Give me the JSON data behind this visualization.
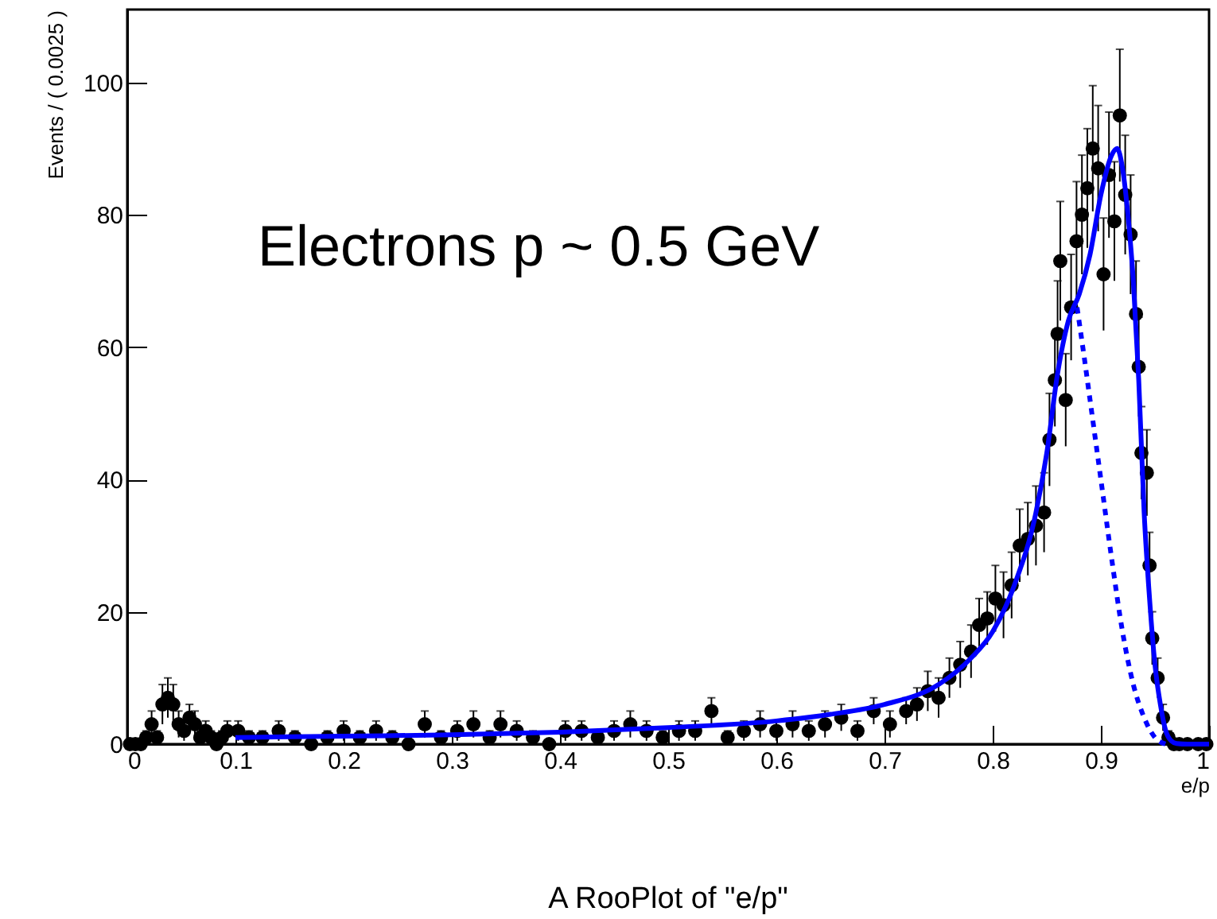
{
  "chart_data": {
    "type": "scatter",
    "title": "A RooPlot of \"e/p\"",
    "xlabel": "e/p",
    "ylabel": "Events / ( 0.0025 )",
    "annotations": [
      "Electrons p  ~ 0.5 GeV"
    ],
    "xlim": [
      0,
      1
    ],
    "xticks": [
      0,
      0.1,
      0.2,
      0.3,
      0.4,
      0.5,
      0.6,
      0.7,
      0.8,
      0.9,
      1
    ],
    "ylim": [
      0,
      111
    ],
    "yticks": [
      0,
      20,
      40,
      60,
      80,
      100
    ],
    "series": [
      {
        "marker": "circle",
        "color": "#000000",
        "x": [
          0.0025,
          0.0075,
          0.0125,
          0.0175,
          0.0225,
          0.0275,
          0.0325,
          0.0375,
          0.0425,
          0.0475,
          0.0525,
          0.0575,
          0.0625,
          0.0675,
          0.0725,
          0.0775,
          0.0825,
          0.0875,
          0.0925,
          0.1025,
          0.1125,
          0.125,
          0.14,
          0.155,
          0.17,
          0.185,
          0.2,
          0.215,
          0.23,
          0.245,
          0.26,
          0.275,
          0.29,
          0.305,
          0.32,
          0.335,
          0.345,
          0.36,
          0.375,
          0.39,
          0.405,
          0.42,
          0.435,
          0.45,
          0.465,
          0.48,
          0.495,
          0.51,
          0.525,
          0.54,
          0.555,
          0.57,
          0.585,
          0.6,
          0.615,
          0.63,
          0.645,
          0.66,
          0.675,
          0.69,
          0.705,
          0.72,
          0.73,
          0.74,
          0.75,
          0.76,
          0.77,
          0.78,
          0.7875,
          0.795,
          0.8025,
          0.81,
          0.8175,
          0.825,
          0.8325,
          0.84,
          0.8475,
          0.8525,
          0.8575,
          0.86,
          0.8625,
          0.8675,
          0.8725,
          0.8775,
          0.8825,
          0.8875,
          0.8925,
          0.8975,
          0.9025,
          0.9075,
          0.9125,
          0.9175,
          0.9225,
          0.9275,
          0.9325,
          0.935,
          0.9375,
          0.9425,
          0.945,
          0.9475,
          0.9525,
          0.9575,
          0.9625,
          0.9675,
          0.9725,
          0.98,
          0.99,
          0.9975
        ],
        "values": [
          0,
          0,
          0,
          1,
          3,
          1,
          6,
          7,
          6,
          3,
          2,
          4,
          3,
          1,
          2,
          1,
          0,
          1,
          2,
          2,
          1,
          1,
          2,
          1,
          0,
          1,
          2,
          1,
          2,
          1,
          0,
          3,
          1,
          2,
          3,
          1,
          3,
          2,
          1,
          0,
          2,
          2,
          1,
          2,
          3,
          2,
          1,
          2,
          2,
          5,
          1,
          2,
          3,
          2,
          3,
          2,
          3,
          4,
          2,
          5,
          3,
          5,
          6,
          8,
          7,
          10,
          12,
          14,
          18,
          19,
          22,
          21,
          24,
          30,
          31,
          33,
          35,
          46,
          55,
          62,
          73,
          52,
          66,
          76,
          80,
          84,
          90,
          87,
          71,
          86,
          79,
          95,
          83,
          77,
          65,
          57,
          44,
          41,
          27,
          16,
          10,
          4,
          1,
          0,
          0,
          0,
          0,
          0
        ],
        "errors": [
          null,
          null,
          null,
          1,
          2,
          1,
          3,
          3,
          3,
          2,
          1.5,
          2,
          2,
          1,
          1.5,
          1,
          null,
          1,
          1.5,
          1.5,
          1,
          1,
          1.5,
          1,
          null,
          1,
          1.5,
          1,
          1.5,
          1,
          null,
          2,
          1,
          1.5,
          2,
          1,
          2,
          1.5,
          1,
          null,
          1.5,
          1.5,
          1,
          1.5,
          2,
          1.5,
          1,
          1.5,
          1.5,
          2,
          1,
          1.5,
          2,
          1.5,
          2,
          1.5,
          2,
          2,
          1.5,
          2,
          2,
          2,
          2.5,
          3,
          3,
          3,
          3.5,
          4,
          4,
          4,
          5,
          5,
          5,
          5.5,
          5.5,
          6,
          6,
          7,
          7,
          8,
          9,
          7,
          8,
          9,
          9,
          9,
          9.5,
          9.5,
          8.5,
          9.5,
          9,
          10,
          9,
          9,
          8,
          7.5,
          7,
          6.5,
          5,
          4,
          3,
          2,
          1,
          null,
          null,
          null,
          null,
          null
        ]
      },
      {
        "type": "line",
        "color": "#0000ff",
        "line_style": "solid",
        "x": [
          0.1,
          0.2,
          0.3,
          0.4,
          0.5,
          0.6,
          0.65,
          0.7,
          0.75,
          0.78,
          0.8,
          0.82,
          0.84,
          0.85,
          0.86,
          0.87,
          0.88,
          0.89,
          0.9,
          0.91,
          0.915,
          0.92,
          0.925,
          0.93,
          0.935,
          0.94,
          0.945,
          0.95,
          0.955,
          0.96,
          0.965,
          0.97,
          0.98,
          1
        ],
        "values": [
          1,
          1.2,
          1.4,
          1.8,
          2.5,
          3.5,
          4.5,
          6,
          9,
          13,
          17,
          24,
          35,
          44,
          56,
          64,
          68,
          74,
          83,
          89,
          90,
          87,
          80,
          70,
          55,
          35,
          22,
          12,
          6,
          2,
          0.5,
          0.1,
          0,
          0
        ]
      },
      {
        "type": "line",
        "color": "#0000ff",
        "line_style": "dotted",
        "x": [
          0.878,
          0.885,
          0.89,
          0.9,
          0.91,
          0.92,
          0.93,
          0.94,
          0.95,
          0.96
        ],
        "values": [
          66,
          58,
          52,
          40,
          28,
          17,
          9,
          4,
          1,
          0
        ]
      }
    ]
  }
}
